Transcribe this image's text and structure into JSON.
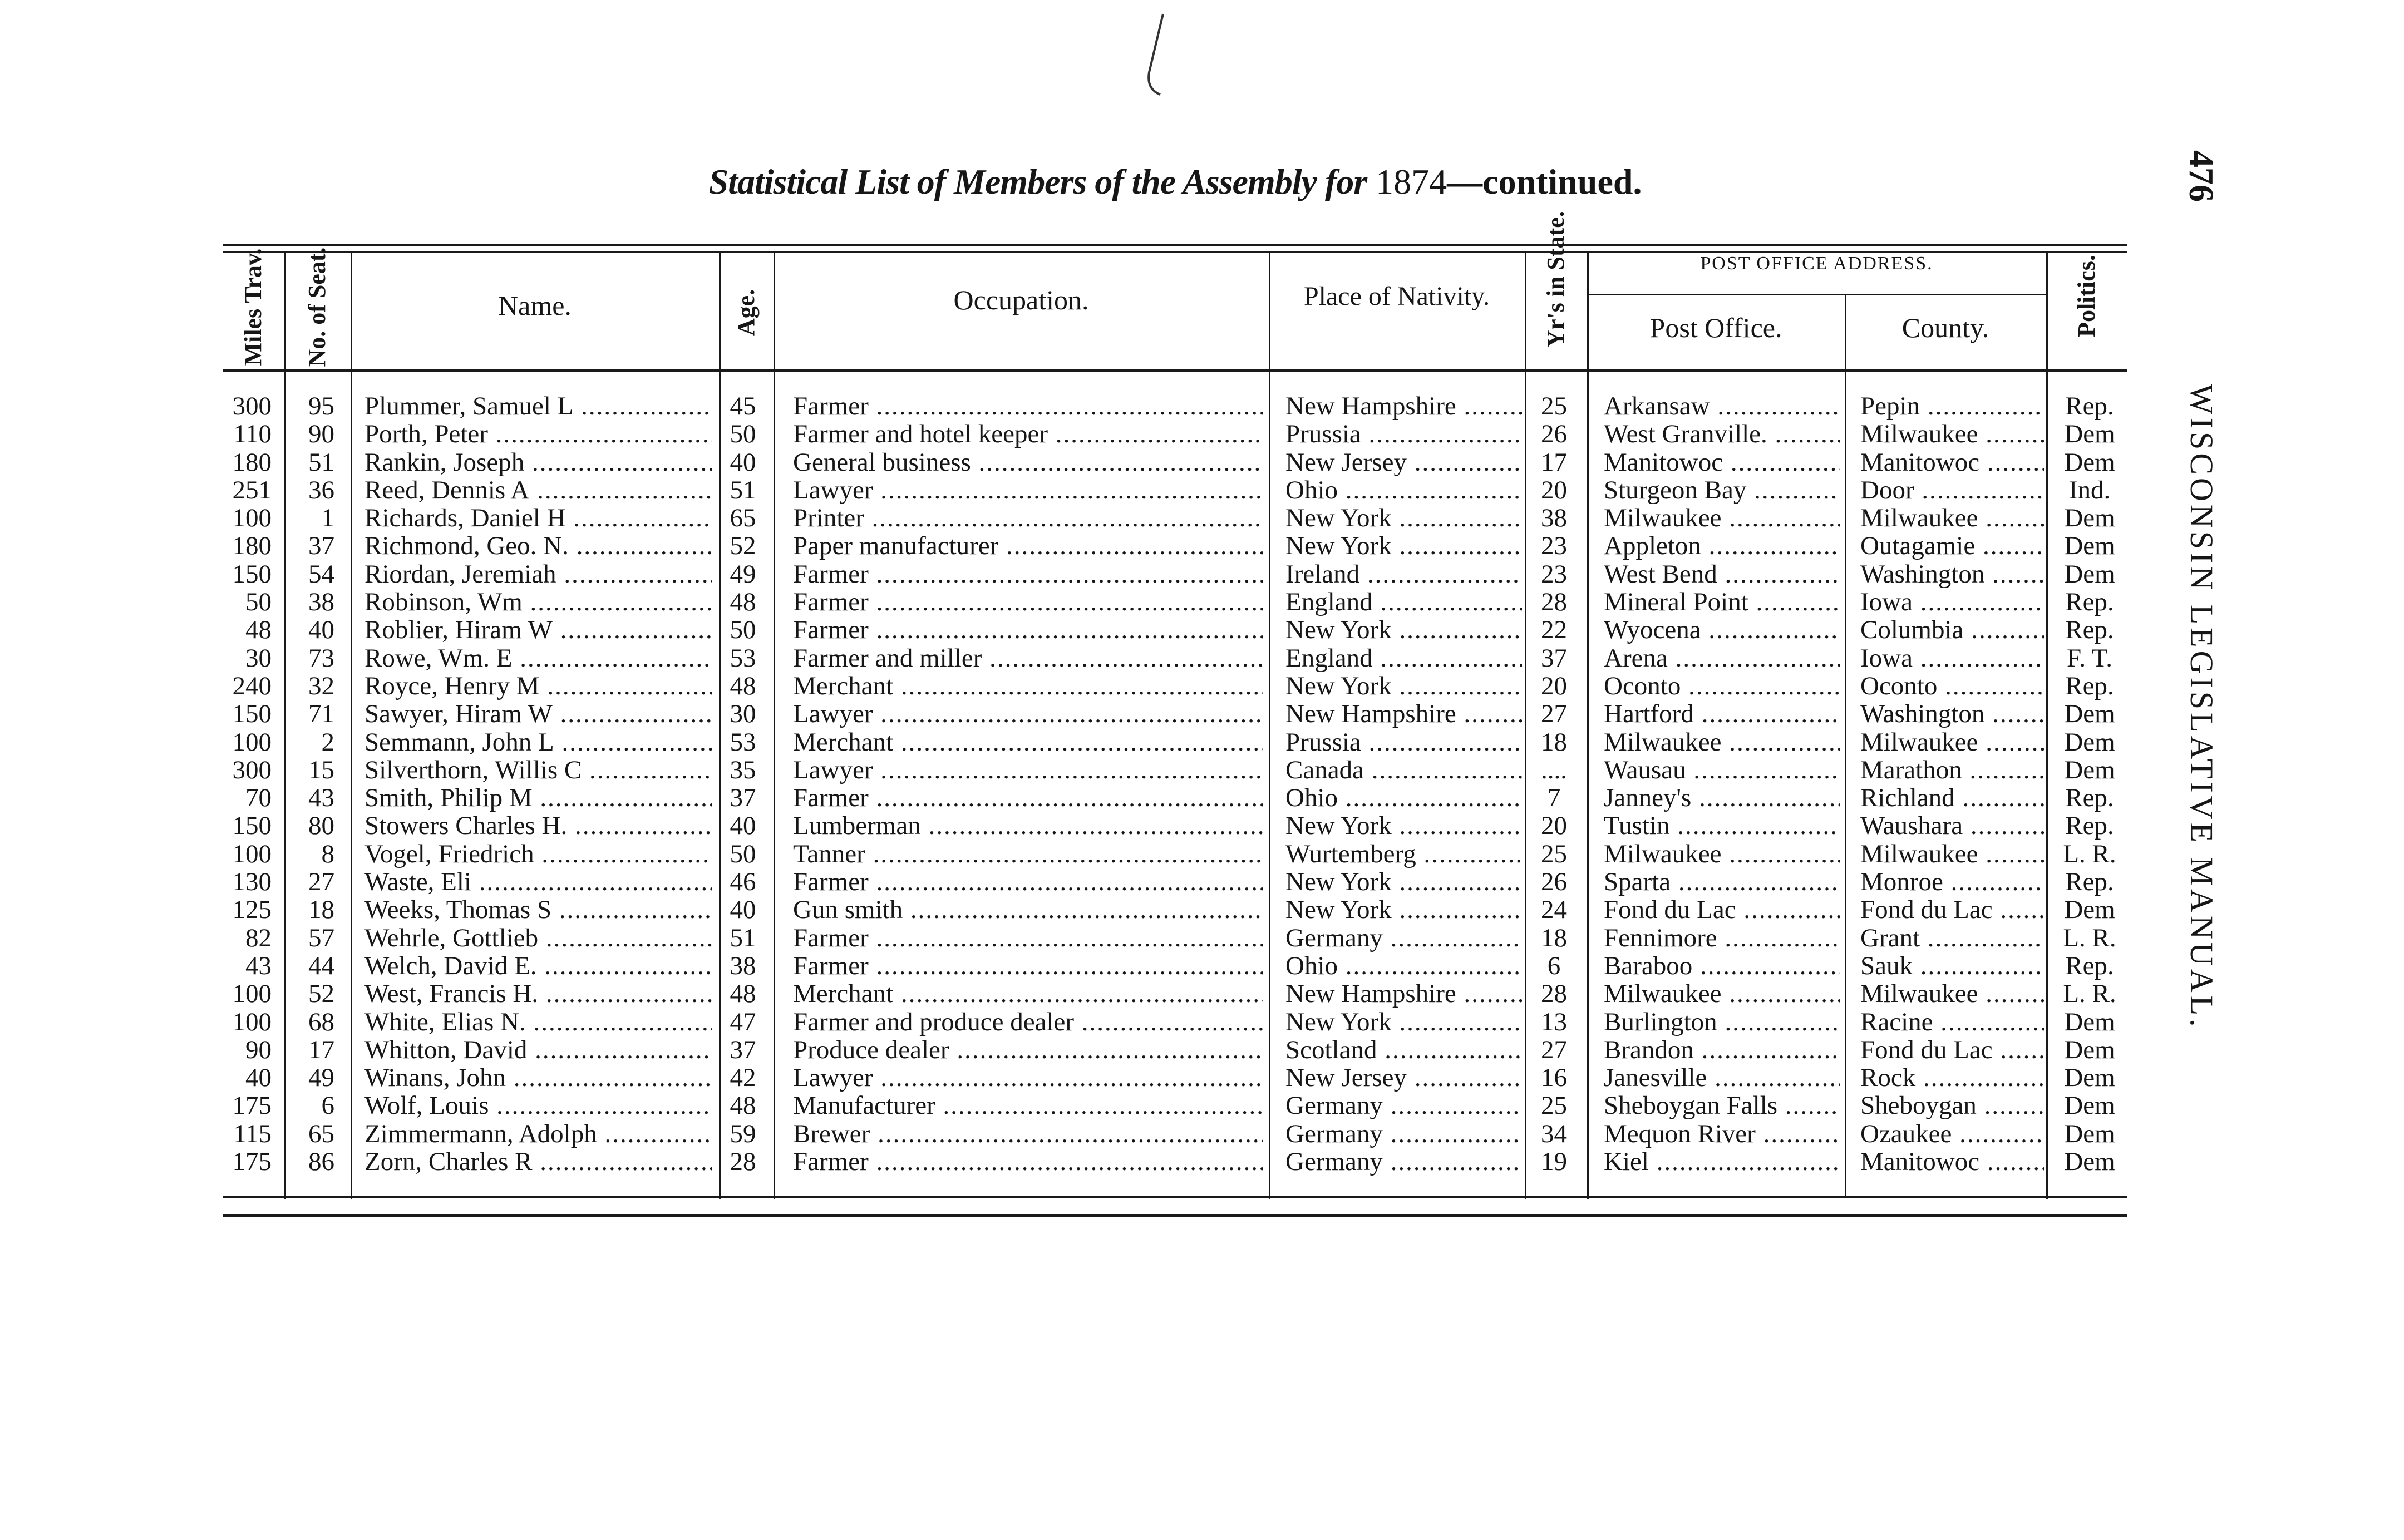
{
  "page": {
    "title_italic": "Statistical List of Members of the Assembly for",
    "title_year": "1874",
    "title_suffix": "—continued.",
    "page_number": "476",
    "running_head": "WISCONSIN LEGISLATIVE MANUAL."
  },
  "headers": {
    "miles": "Miles Trav.",
    "seat": "No. of Seat.",
    "name": "Name.",
    "age": "Age.",
    "occupation": "Occupation.",
    "nativity": "Place of Nativity.",
    "years": "Yr's in State.",
    "post_office_address": "POST OFFICE ADDRESS.",
    "post_office": "Post Office.",
    "county": "County.",
    "politics": "Politics."
  },
  "rows": [
    [
      "300",
      "95",
      "Plummer, Samuel L",
      "45",
      "Farmer",
      "New Hampshire",
      "25",
      "Arkansaw",
      "Pepin",
      "Rep."
    ],
    [
      "110",
      "90",
      "Porth, Peter",
      "50",
      "Farmer and hotel keeper",
      "Prussia",
      "26",
      "West Granville.",
      "Milwaukee",
      "Dem"
    ],
    [
      "180",
      "51",
      "Rankin, Joseph",
      "40",
      "General business",
      "New Jersey",
      "17",
      "Manitowoc",
      "Manitowoc",
      "Dem"
    ],
    [
      "251",
      "36",
      "Reed, Dennis A",
      "51",
      "Lawyer",
      "Ohio",
      "20",
      "Sturgeon Bay",
      "Door",
      "Ind."
    ],
    [
      "100",
      "1",
      "Richards, Daniel H",
      "65",
      "Printer",
      "New York",
      "38",
      "Milwaukee",
      "Milwaukee",
      "Dem"
    ],
    [
      "180",
      "37",
      "Richmond, Geo. N.",
      "52",
      "Paper manufacturer",
      "New York",
      "23",
      "Appleton",
      "Outagamie",
      "Dem"
    ],
    [
      "150",
      "54",
      "Riordan, Jeremiah",
      "49",
      "Farmer",
      "Ireland",
      "23",
      "West Bend",
      "Washington",
      "Dem"
    ],
    [
      "50",
      "38",
      "Robinson, Wm",
      "48",
      "Farmer",
      "England",
      "28",
      "Mineral Point",
      "Iowa",
      "Rep."
    ],
    [
      "48",
      "40",
      "Roblier, Hiram W",
      "50",
      "Farmer",
      "New York",
      "22",
      "Wyocena",
      "Columbia",
      "Rep."
    ],
    [
      "30",
      "73",
      "Rowe, Wm. E",
      "53",
      "Farmer and miller",
      "England",
      "37",
      "Arena",
      "Iowa",
      "F. T."
    ],
    [
      "240",
      "32",
      "Royce, Henry M",
      "48",
      "Merchant",
      "New York",
      "20",
      "Oconto",
      "Oconto",
      "Rep."
    ],
    [
      "150",
      "71",
      "Sawyer, Hiram W",
      "30",
      "Lawyer",
      "New Hampshire",
      "27",
      "Hartford",
      "Washington",
      "Dem"
    ],
    [
      "100",
      "2",
      "Semmann, John L",
      "53",
      "Merchant",
      "Prussia",
      "18",
      "Milwaukee",
      "Milwaukee",
      "Dem"
    ],
    [
      "300",
      "15",
      "Silverthorn, Willis C",
      "35",
      "Lawyer",
      "Canada",
      "....",
      "Wausau",
      "Marathon",
      "Dem"
    ],
    [
      "70",
      "43",
      "Smith, Philip M",
      "37",
      "Farmer",
      "Ohio",
      "7",
      "Janney's",
      "Richland",
      "Rep."
    ],
    [
      "150",
      "80",
      "Stowers Charles H.",
      "40",
      "Lumberman",
      "New York",
      "20",
      "Tustin",
      "Waushara",
      "Rep."
    ],
    [
      "100",
      "8",
      "Vogel, Friedrich",
      "50",
      "Tanner",
      "Wurtemberg",
      "25",
      "Milwaukee",
      "Milwaukee",
      "L. R."
    ],
    [
      "130",
      "27",
      "Waste, Eli",
      "46",
      "Farmer",
      "New York",
      "26",
      "Sparta",
      "Monroe",
      "Rep."
    ],
    [
      "125",
      "18",
      "Weeks, Thomas S",
      "40",
      "Gun smith",
      "New York",
      "24",
      "Fond du Lac",
      "Fond du Lac",
      "Dem"
    ],
    [
      "82",
      "57",
      "Wehrle, Gottlieb",
      "51",
      "Farmer",
      "Germany",
      "18",
      "Fennimore",
      "Grant",
      "L. R."
    ],
    [
      "43",
      "44",
      "Welch, David E.",
      "38",
      "Farmer",
      "Ohio",
      "6",
      "Baraboo",
      "Sauk",
      "Rep."
    ],
    [
      "100",
      "52",
      "West, Francis H.",
      "48",
      "Merchant",
      "New Hampshire",
      "28",
      "Milwaukee",
      "Milwaukee",
      "L. R."
    ],
    [
      "100",
      "68",
      "White, Elias N.",
      "47",
      "Farmer and produce dealer",
      "New York",
      "13",
      "Burlington",
      "Racine",
      "Dem"
    ],
    [
      "90",
      "17",
      "Whitton, David",
      "37",
      "Produce dealer",
      "Scotland",
      "27",
      "Brandon",
      "Fond du Lac",
      "Dem"
    ],
    [
      "40",
      "49",
      "Winans, John",
      "42",
      "Lawyer",
      "New Jersey",
      "16",
      "Janesville",
      "Rock",
      "Dem"
    ],
    [
      "175",
      "6",
      "Wolf, Louis",
      "48",
      "Manufacturer",
      "Germany",
      "25",
      "Sheboygan Falls",
      "Sheboygan",
      "Dem"
    ],
    [
      "115",
      "65",
      "Zimmermann, Adolph",
      "59",
      "Brewer",
      "Germany",
      "34",
      "Mequon River",
      "Ozaukee",
      "Dem"
    ],
    [
      "175",
      "86",
      "Zorn, Charles R",
      "28",
      "Farmer",
      "Germany",
      "19",
      "Kiel",
      "Manitowoc",
      "Dem"
    ]
  ]
}
